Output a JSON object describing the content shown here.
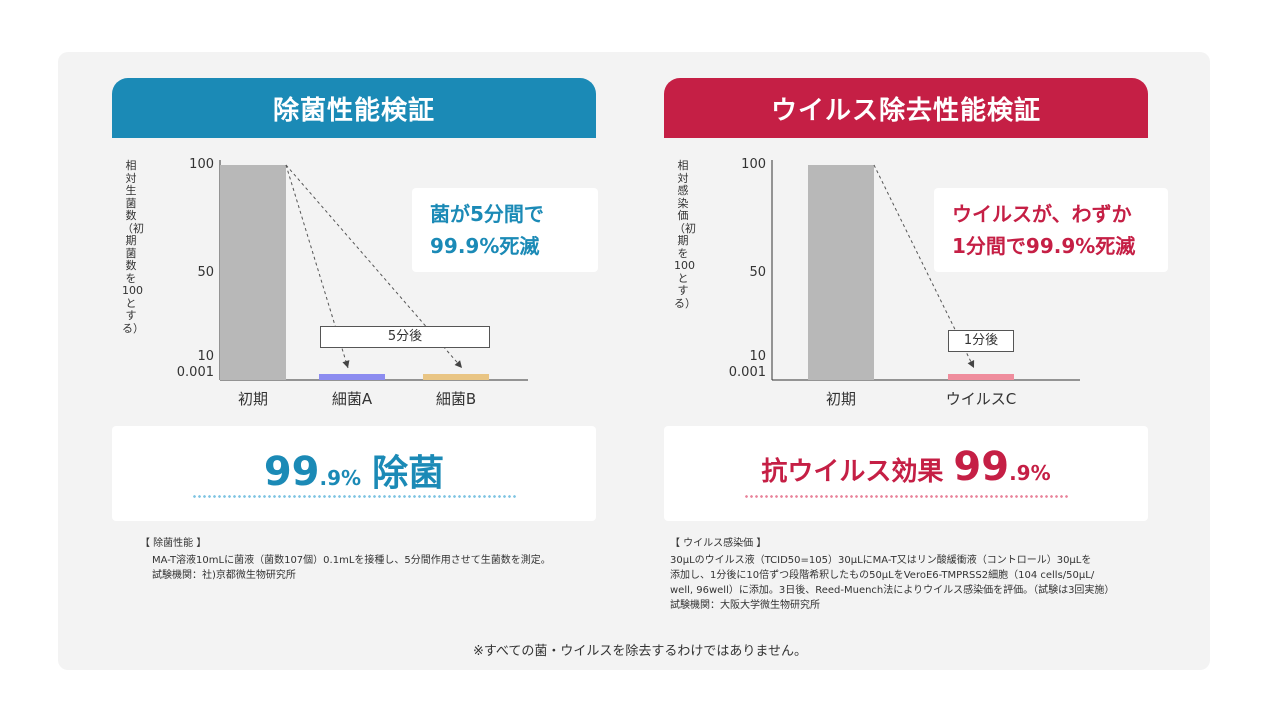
{
  "colors": {
    "blue": "#1b8ab6",
    "red": "#c51f45",
    "bar_gray": "#b8b8b8",
    "bar_blue": "#8c8cf0",
    "bar_yellow": "#e9c584",
    "bar_pink": "#ef8d9d"
  },
  "left": {
    "header": "除菌性能検証",
    "ylabel": "相対生菌数（初期菌数を100とする）",
    "callout_line1": "菌が5分間で",
    "callout_line2": "99.9%死滅",
    "tag": "5分後",
    "result_num": "99",
    "result_dec": ".9%",
    "result_text": "除菌",
    "notes_title": "【 除菌性能 】",
    "notes_line1": "MA-T溶液10mLに菌液（菌数107個）0.1mLを接種し、5分間作用させて生菌数を測定。",
    "notes_line2": "試験機関：社)京都微生物研究所"
  },
  "right": {
    "header": "ウイルス除去性能検証",
    "ylabel": "相対感染価（初期を100とする）",
    "callout_line1": "ウイルスが、わずか",
    "callout_line2": "1分間で99.9%死滅",
    "tag": "1分後",
    "result_text": "抗ウイルス効果",
    "result_num": "99",
    "result_dec": ".9%",
    "notes_title": "【 ウイルス感染価 】",
    "notes_line1": "30μLのウイルス液（TCID50=105）30μLにMA-T又はリン酸緩衝液（コントロール）30μLを",
    "notes_line2": "添加し、1分後に10倍ずつ段階希釈したもの50μLをVeroE6-TMPRSS2細胞（104 cells/50μL/",
    "notes_line3": "well, 96well）に添加。3日後、Reed-Muench法によりウイルス感染価を評価。（試験は3回実施）",
    "notes_line4": "試験機関：大阪大学微生物研究所"
  },
  "chart_data": [
    {
      "type": "bar",
      "categories": [
        "初期",
        "細菌A",
        "細菌B"
      ],
      "values": [
        100,
        0.1,
        0.1
      ],
      "ylabel": "相対生菌数（初期菌数を100とする）",
      "yticks": [
        "100",
        "50",
        "10",
        "0.001"
      ]
    },
    {
      "type": "bar",
      "categories": [
        "初期",
        "ウイルスC"
      ],
      "values": [
        100,
        0.1
      ],
      "ylabel": "相対感染価（初期を100とする）",
      "yticks": [
        "100",
        "50",
        "10",
        "0.001"
      ]
    }
  ],
  "footer": "※すべての菌・ウイルスを除去するわけではありません。"
}
